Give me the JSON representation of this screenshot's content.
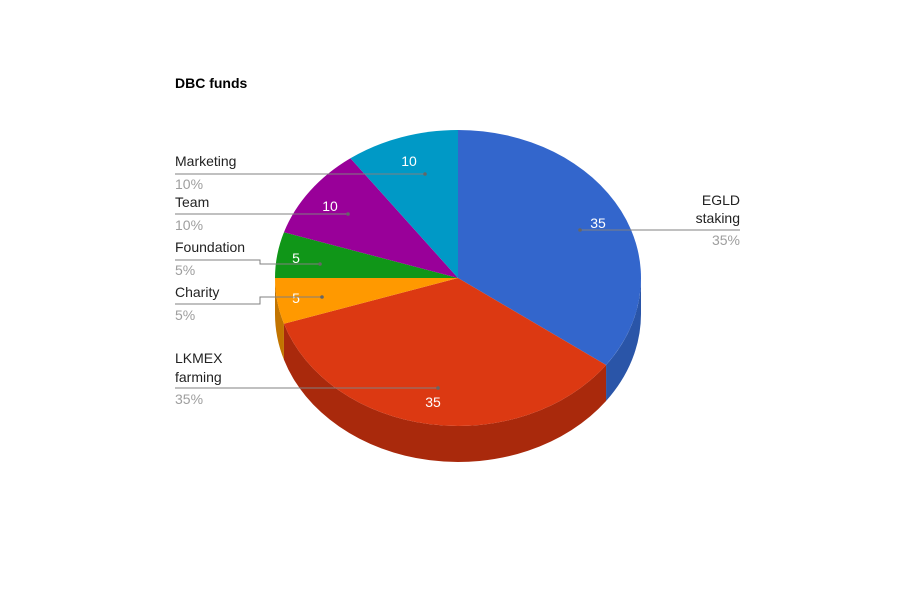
{
  "chart_data": {
    "type": "pie",
    "title": "DBC funds",
    "three_d": true,
    "legend": "labeled",
    "slices": [
      {
        "id": "egld",
        "label_lines": [
          "EGLD",
          "staking"
        ],
        "value": 35,
        "value_label": "35",
        "percent_label": "35%",
        "color": "#3366cc",
        "side_color": "#2a55a8"
      },
      {
        "id": "lkmex",
        "label_lines": [
          "LKMEX",
          "farming"
        ],
        "value": 35,
        "value_label": "35",
        "percent_label": "35%",
        "color": "#dc3912",
        "side_color": "#a9290c"
      },
      {
        "id": "charity",
        "label_lines": [
          "Charity"
        ],
        "value": 5,
        "value_label": "5",
        "percent_label": "5%",
        "color": "#ff9900",
        "side_color": "#c27400"
      },
      {
        "id": "foundation",
        "label_lines": [
          "Foundation"
        ],
        "value": 5,
        "value_label": "5",
        "percent_label": "5%",
        "color": "#109618",
        "side_color": "#0b7012"
      },
      {
        "id": "team",
        "label_lines": [
          "Team"
        ],
        "value": 10,
        "value_label": "10",
        "percent_label": "10%",
        "color": "#990099",
        "side_color": "#700070"
      },
      {
        "id": "marketing",
        "label_lines": [
          "Marketing"
        ],
        "value": 10,
        "value_label": "10",
        "percent_label": "10%",
        "color": "#0099c6",
        "side_color": "#007394"
      }
    ]
  }
}
